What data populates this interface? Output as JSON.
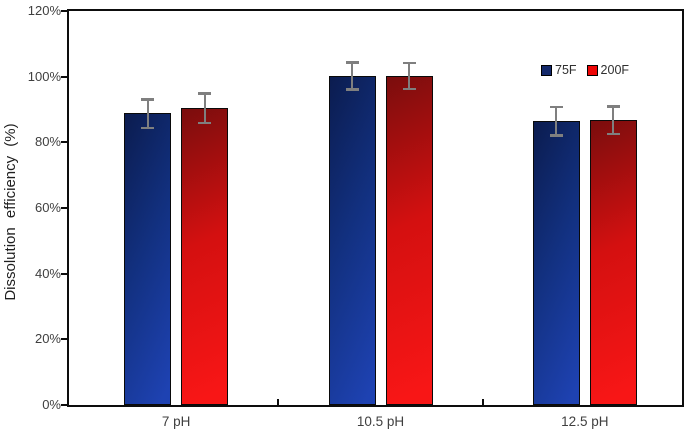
{
  "chart_data": {
    "type": "bar",
    "title": "",
    "ylabel": "Dissolution efficiency (%)",
    "xlabel": "",
    "categories": [
      "7 pH",
      "10.5 pH",
      "12.5 pH"
    ],
    "series": [
      {
        "name": "75F",
        "values": [
          88.8,
          100.3,
          86.5
        ],
        "errors": [
          4.3,
          4.1,
          4.3
        ],
        "color_dark": "#0b1c4f",
        "color_mid": "#12307f",
        "color_bright": "#1e42b2",
        "legend_color": "#14296b"
      },
      {
        "name": "200F",
        "values": [
          90.4,
          100.3,
          86.8
        ],
        "errors": [
          4.5,
          4.0,
          4.2
        ],
        "color_dark": "#7a0d0d",
        "color_mid": "#d41010",
        "color_bright": "#f81616",
        "legend_color": "#ee0606"
      }
    ],
    "ylim": [
      0,
      120
    ],
    "ytick_step": 20,
    "ytick_labels": [
      "0%",
      "20%",
      "40%",
      "60%",
      "80%",
      "100%",
      "120%"
    ],
    "grid": false,
    "legend_position": "top-right-inside",
    "error_bar_color": "#7f7f7f",
    "axis_color": "#0d0d0d",
    "text_color": "#3f3f3f",
    "background": "#ffffff"
  }
}
